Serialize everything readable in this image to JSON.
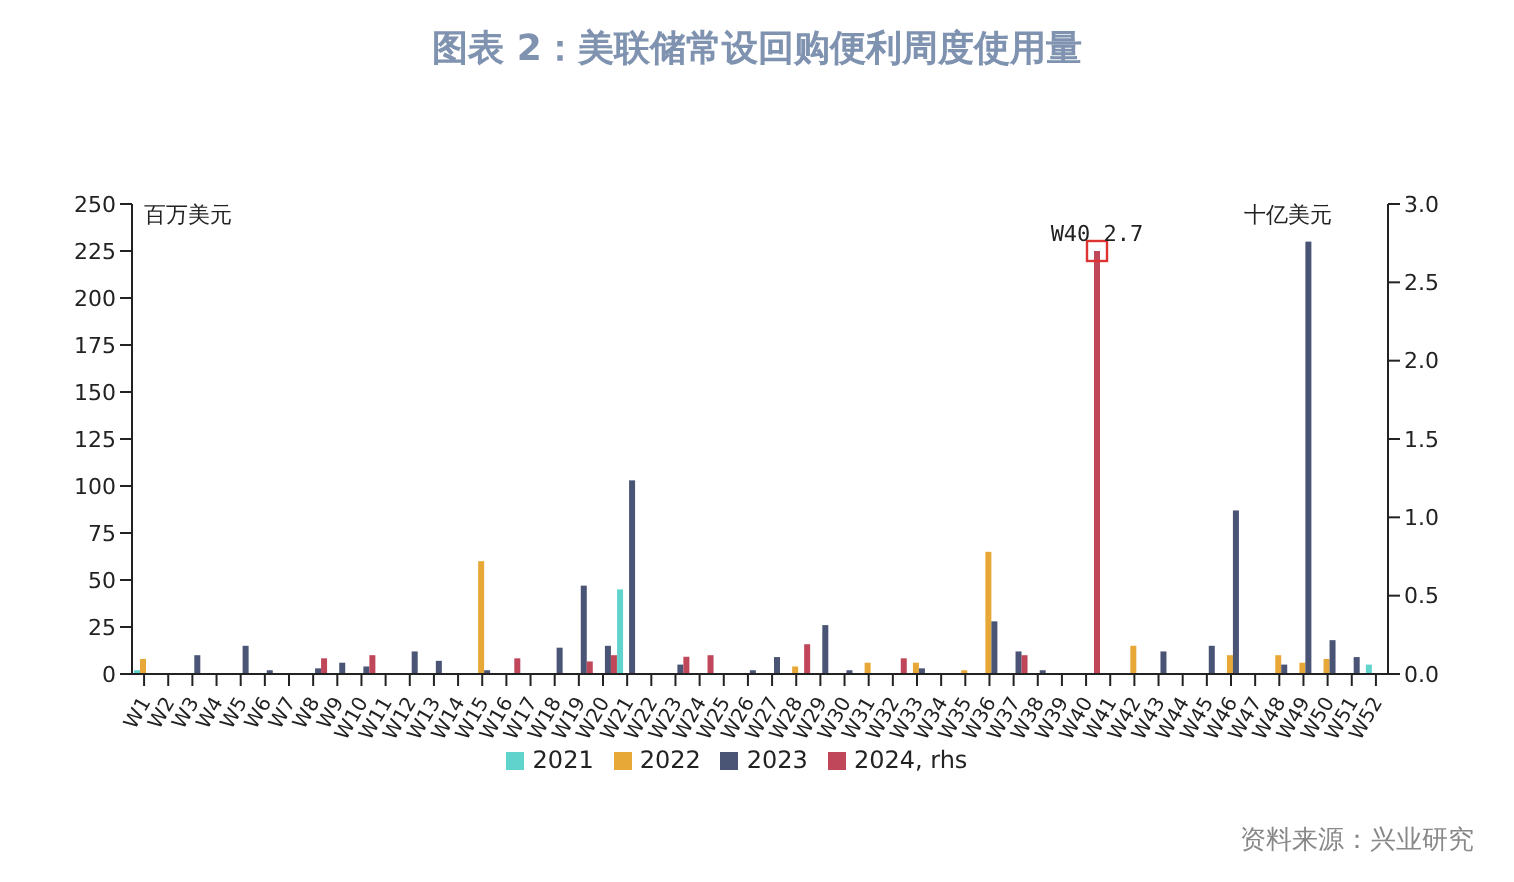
{
  "chart_data": {
    "type": "bar",
    "title": "图表 2：美联储常设回购便利周度使用量",
    "ylabel": "百万美元",
    "y2label": "十亿美元",
    "categories": [
      "W1",
      "W2",
      "W3",
      "W4",
      "W5",
      "W6",
      "W7",
      "W8",
      "W9",
      "W10",
      "W11",
      "W12",
      "W13",
      "W14",
      "W15",
      "W16",
      "W17",
      "W18",
      "W19",
      "W20",
      "W21",
      "W22",
      "W23",
      "W24",
      "W25",
      "W26",
      "W27",
      "W28",
      "W29",
      "W30",
      "W31",
      "W32",
      "W33",
      "W34",
      "W35",
      "W36",
      "W37",
      "W38",
      "W39",
      "W40",
      "W41",
      "W42",
      "W43",
      "W44",
      "W45",
      "W46",
      "W47",
      "W48",
      "W49",
      "W50",
      "W51",
      "W52"
    ],
    "series": [
      {
        "name": "2021",
        "color": "#5fd3cc",
        "values": [
          2,
          null,
          null,
          null,
          null,
          null,
          null,
          null,
          null,
          null,
          null,
          null,
          null,
          null,
          null,
          null,
          null,
          null,
          null,
          null,
          45,
          null,
          null,
          null,
          null,
          null,
          null,
          null,
          null,
          null,
          null,
          null,
          null,
          null,
          null,
          null,
          null,
          null,
          null,
          null,
          null,
          null,
          null,
          null,
          null,
          null,
          null,
          null,
          null,
          null,
          null,
          5
        ]
      },
      {
        "name": "2022",
        "color": "#e8a838",
        "values": [
          8,
          null,
          null,
          null,
          null,
          null,
          null,
          null,
          null,
          null,
          null,
          null,
          null,
          null,
          60,
          null,
          null,
          null,
          null,
          null,
          null,
          null,
          null,
          null,
          null,
          null,
          null,
          4,
          null,
          null,
          6,
          null,
          6,
          null,
          2,
          65,
          null,
          null,
          null,
          null,
          null,
          15,
          null,
          null,
          null,
          10,
          null,
          10,
          6,
          8,
          null,
          null
        ]
      },
      {
        "name": "2023",
        "color": "#4a5575",
        "values": [
          null,
          null,
          10,
          null,
          15,
          2,
          null,
          3,
          6,
          4,
          null,
          12,
          7,
          null,
          2,
          null,
          null,
          14,
          47,
          15,
          103,
          null,
          5,
          null,
          null,
          2,
          9,
          null,
          26,
          2,
          null,
          null,
          3,
          null,
          null,
          28,
          12,
          2,
          null,
          null,
          null,
          null,
          12,
          null,
          15,
          87,
          null,
          5,
          230,
          18,
          9,
          null
        ]
      },
      {
        "name": "2024, rhs",
        "color": "#c0465a",
        "axis": "y2",
        "values": [
          null,
          null,
          null,
          null,
          null,
          null,
          null,
          0.1,
          null,
          0.12,
          null,
          null,
          null,
          null,
          null,
          0.1,
          null,
          null,
          0.08,
          0.12,
          null,
          null,
          0.11,
          0.12,
          null,
          null,
          null,
          0.19,
          null,
          null,
          null,
          0.1,
          null,
          null,
          null,
          null,
          0.12,
          null,
          null,
          2.7,
          null,
          null,
          null,
          null,
          null,
          null,
          null,
          null,
          null,
          null,
          null,
          null
        ]
      }
    ],
    "ylim": [
      0,
      250
    ],
    "yticks": [
      0,
      25,
      50,
      75,
      100,
      125,
      150,
      175,
      200,
      225,
      250
    ],
    "y2lim": [
      0,
      3
    ],
    "y2ticks": [
      {
        "value": 0,
        "label": "0.0"
      },
      {
        "value": 0.5,
        "label": "0.5"
      },
      {
        "value": 1,
        "label": "1.0"
      },
      {
        "value": 1.5,
        "label": "1.5"
      },
      {
        "value": 2,
        "label": "2.0"
      },
      {
        "value": 2.5,
        "label": "2.5"
      },
      {
        "value": 3,
        "label": "3.0"
      }
    ],
    "annotations": [
      {
        "text": "W40 2.7",
        "x": "W40",
        "y": 225
      },
      "资料来源：兴业研究"
    ],
    "legend": "bottom",
    "grid": false
  }
}
